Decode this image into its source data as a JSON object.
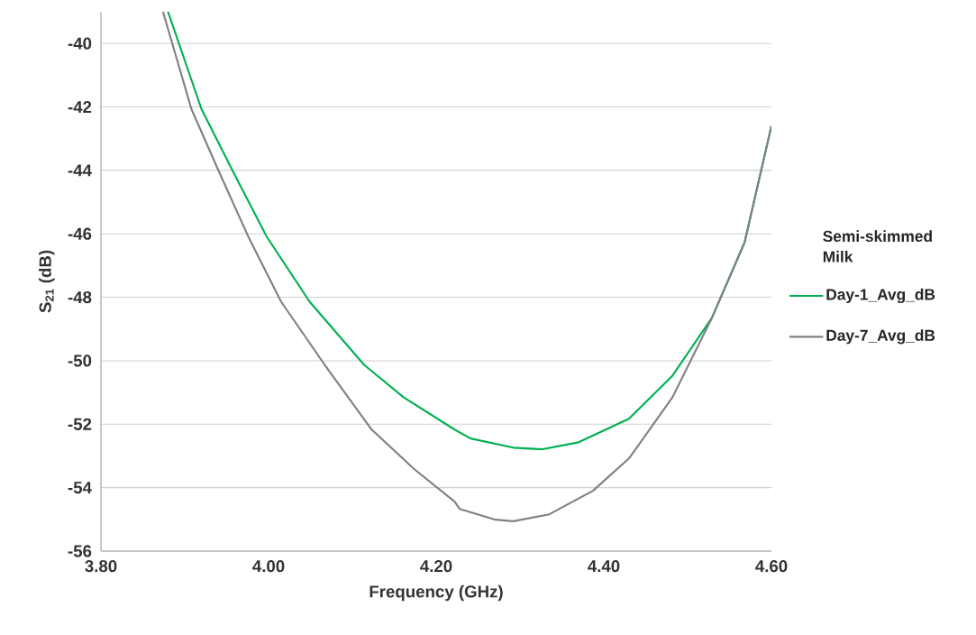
{
  "chart_data": {
    "type": "line",
    "xlabel": "Frequency (GHz)",
    "ylabel": "S$_{21}$ (dB)",
    "legend_title": "Semi-skimmed Milk",
    "xlim": [
      3.8,
      4.6
    ],
    "ylim": [
      -56,
      -39
    ],
    "xticks": [
      {
        "value": 3.8,
        "label": "3.80"
      },
      {
        "value": 4.0,
        "label": "4.00"
      },
      {
        "value": 4.2,
        "label": "4.20"
      },
      {
        "value": 4.4,
        "label": "4.40"
      },
      {
        "value": 4.6,
        "label": "4.60"
      }
    ],
    "yticks": [
      -56,
      -54,
      -52,
      -50,
      -48,
      -46,
      -44,
      -42,
      -40
    ],
    "grid": "y",
    "legend": "right",
    "marker": "none",
    "line_style": "solid",
    "series": [
      {
        "name": "Day-1_Avg_dB",
        "color": "#00b050",
        "x": [
          3.88,
          3.92,
          3.959,
          3.998,
          4.049,
          4.114,
          4.161,
          4.222,
          4.241,
          4.292,
          4.327,
          4.37,
          4.43,
          4.482,
          4.529,
          4.568,
          4.6
        ],
        "values": [
          -39,
          -42.07,
          -44.11,
          -46.1,
          -48.14,
          -50.13,
          -51.15,
          -52.17,
          -52.45,
          -52.74,
          -52.79,
          -52.57,
          -51.83,
          -50.47,
          -48.65,
          -46.27,
          -42.6
        ]
      },
      {
        "name": "Day-7_Avg_dB",
        "color": "#808080",
        "x": [
          3.874,
          3.908,
          3.942,
          3.976,
          4.015,
          4.067,
          4.123,
          4.174,
          4.222,
          4.228,
          4.271,
          4.292,
          4.335,
          4.387,
          4.43,
          4.482,
          4.529,
          4.568,
          4.6
        ],
        "values": [
          -39,
          -42.07,
          -44.11,
          -46.1,
          -48.14,
          -50.13,
          -52.17,
          -53.42,
          -54.44,
          -54.67,
          -55.01,
          -55.06,
          -54.84,
          -54.1,
          -53.08,
          -51.15,
          -48.65,
          -46.27,
          -42.6
        ]
      }
    ]
  }
}
